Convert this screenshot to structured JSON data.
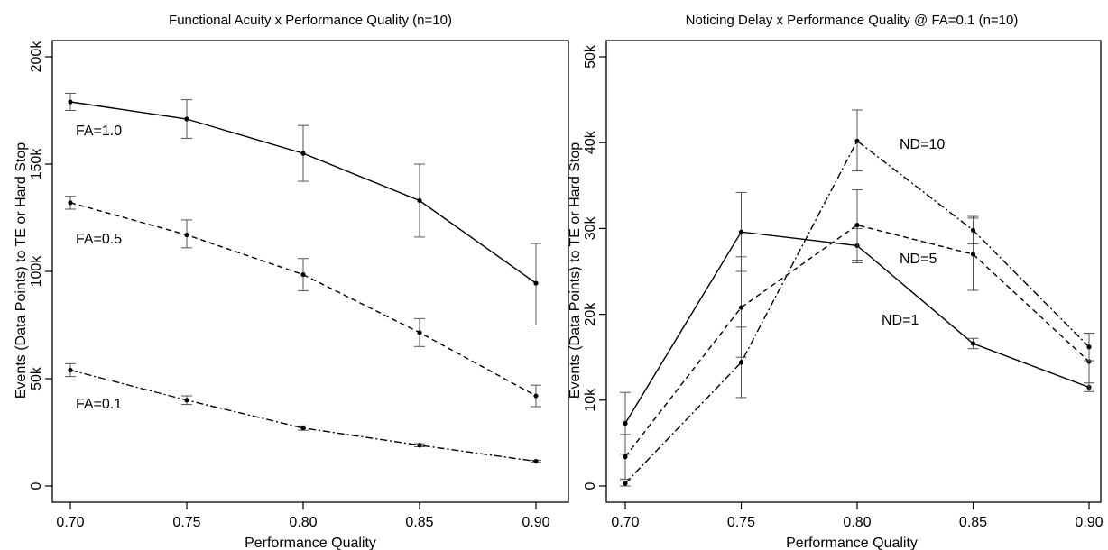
{
  "chart_data": [
    {
      "type": "line",
      "title": "Functional Acuity x Performance Quality (n=10)",
      "xlabel": "Performance Quality",
      "ylabel": "Events (Data Points) to TE or Hard Stop",
      "x": [
        0.7,
        0.75,
        0.8,
        0.85,
        0.9
      ],
      "x_tick_labels": [
        "0.70",
        "0.75",
        "0.80",
        "0.85",
        "0.90"
      ],
      "y_ticks": [
        0,
        50000,
        100000,
        150000,
        200000
      ],
      "y_tick_labels": [
        "0",
        "50k",
        "100k",
        "150k",
        "200k"
      ],
      "xlim": [
        0.7,
        0.9
      ],
      "ylim": [
        0,
        200000
      ],
      "grid": false,
      "legend": "none",
      "series": [
        {
          "name": "FA=1.0",
          "line_style": "solid",
          "values": [
            179000,
            171000,
            155000,
            133000,
            94500
          ],
          "err_low": [
            175000,
            162000,
            142000,
            116000,
            75000
          ],
          "err_high": [
            183000,
            180000,
            168000,
            150000,
            113000
          ]
        },
        {
          "name": "FA=0.5",
          "line_style": "dashed",
          "values": [
            132000,
            117000,
            98500,
            71500,
            42000
          ],
          "err_low": [
            129000,
            111000,
            91000,
            65000,
            37000
          ],
          "err_high": [
            135000,
            124000,
            106000,
            78000,
            47000
          ]
        },
        {
          "name": "FA=0.1",
          "line_style": "dashdot",
          "values": [
            54000,
            40000,
            27000,
            19000,
            11500
          ],
          "err_low": [
            51000,
            38000,
            26000,
            18300,
            11000
          ],
          "err_high": [
            57000,
            42000,
            28000,
            19700,
            12000
          ]
        }
      ]
    },
    {
      "type": "line",
      "title": "Noticing Delay x Performance Quality @ FA=0.1 (n=10)",
      "xlabel": "Performance Quality",
      "ylabel": "Events (Data Points) to TE or Hard Stop",
      "x": [
        0.7,
        0.75,
        0.8,
        0.85,
        0.9
      ],
      "x_tick_labels": [
        "0.70",
        "0.75",
        "0.80",
        "0.85",
        "0.90"
      ],
      "y_ticks": [
        0,
        10000,
        20000,
        30000,
        40000,
        50000
      ],
      "y_tick_labels": [
        "0",
        "10k",
        "20k",
        "30k",
        "40k",
        "50k"
      ],
      "xlim": [
        0.7,
        0.9
      ],
      "ylim": [
        0,
        50000
      ],
      "grid": false,
      "legend": "none",
      "series": [
        {
          "name": "ND=1",
          "line_style": "solid",
          "values": [
            7300,
            29600,
            28000,
            16600,
            11500
          ],
          "err_low": [
            3700,
            25000,
            26000,
            16000,
            11000
          ],
          "err_high": [
            10900,
            34200,
            30000,
            17200,
            12000
          ]
        },
        {
          "name": "ND=5",
          "line_style": "dashed",
          "values": [
            3400,
            20800,
            30400,
            27000,
            14500
          ],
          "err_low": [
            800,
            15000,
            26300,
            22800,
            11200
          ],
          "err_high": [
            6000,
            26700,
            34500,
            31200,
            17800
          ]
        },
        {
          "name": "ND=10",
          "line_style": "dashdot",
          "values": [
            300,
            14400,
            40200,
            29800,
            16200
          ],
          "err_low": [
            0,
            10300,
            36700,
            28200,
            14600
          ],
          "err_high": [
            600,
            18500,
            43800,
            31400,
            17800
          ]
        }
      ]
    }
  ]
}
